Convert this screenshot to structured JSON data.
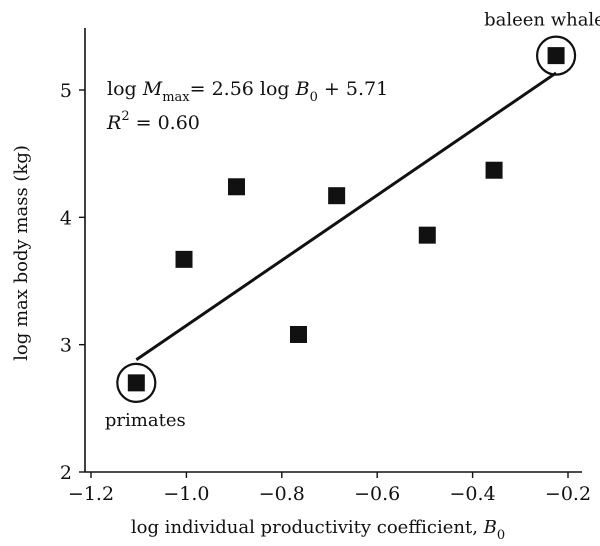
{
  "chart_data": {
    "type": "scatter",
    "title": "",
    "xlabel": "log individual productivity coefficient, ",
    "xlabel_var": "B",
    "xlabel_sub": "0",
    "ylabel": "log max body mass (kg)",
    "xlim": [
      -1.2,
      -0.2
    ],
    "ylim": [
      2,
      5.5
    ],
    "x_ticks": [
      -1.2,
      -1.0,
      -0.8,
      -0.6,
      -0.4,
      -0.2
    ],
    "x_tick_labels": [
      "−1.2",
      "−1.0",
      "−0.8",
      "−0.6",
      "−0.4",
      "−0.2"
    ],
    "y_ticks": [
      2,
      3,
      4,
      5
    ],
    "y_tick_labels": [
      "2",
      "3",
      "4",
      "5"
    ],
    "points": [
      {
        "x": -1.105,
        "y": 2.7,
        "label": "primates",
        "circled": true
      },
      {
        "x": -1.005,
        "y": 3.67
      },
      {
        "x": -0.895,
        "y": 4.24
      },
      {
        "x": -0.765,
        "y": 3.08
      },
      {
        "x": -0.685,
        "y": 4.17
      },
      {
        "x": -0.495,
        "y": 3.86
      },
      {
        "x": -0.355,
        "y": 4.37
      },
      {
        "x": -0.225,
        "y": 5.27,
        "label": "baleen whales",
        "circled": true
      }
    ],
    "fit": {
      "slope": 2.56,
      "intercept": 5.71,
      "x_range": [
        -1.105,
        -0.225
      ]
    },
    "equation": {
      "lhs_log": "log ",
      "lhs_var": "M",
      "lhs_sub": "max",
      "rhs_a": "= 2.56 log ",
      "rhs_var": "B",
      "rhs_sub": "0",
      "rhs_b": " + 5.71"
    },
    "r2": {
      "var": "R",
      "sup": "2",
      "rest": " = 0.60"
    },
    "marker_color": "#111111",
    "line_color": "#111111",
    "grid": false,
    "legend": "none"
  }
}
